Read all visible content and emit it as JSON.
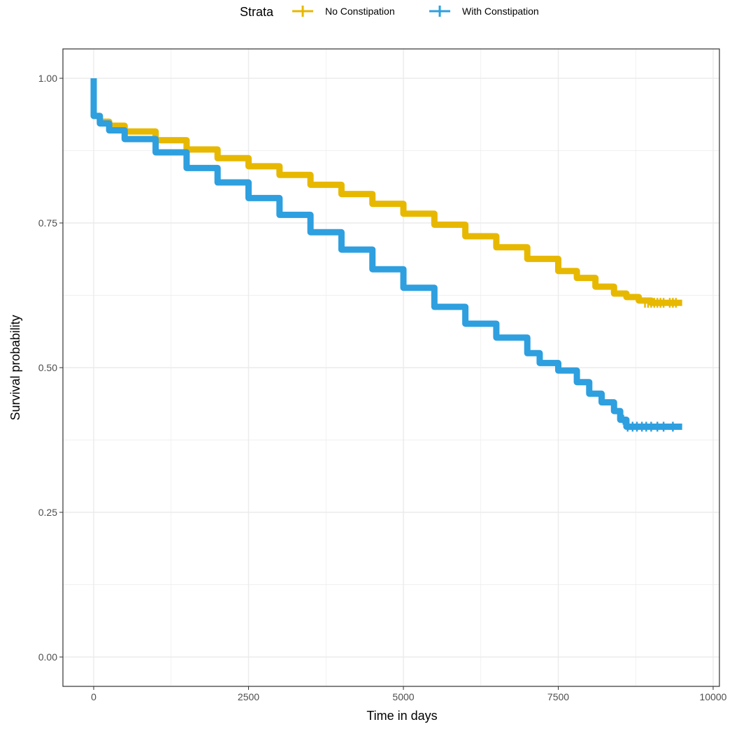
{
  "chart_data": {
    "type": "line",
    "subtype": "kaplan-meier survival curve (step)",
    "title": "",
    "xlabel": "Time in days",
    "ylabel": "Survival probability",
    "xlim": [
      -500,
      10400
    ],
    "ylim": [
      -0.05,
      1.05
    ],
    "x_ticks": [
      0,
      2500,
      5000,
      7500,
      10000
    ],
    "x_tick_labels": [
      "0",
      "2500",
      "5000",
      "7500",
      "10000"
    ],
    "y_ticks": [
      0,
      0.25,
      0.5,
      0.75,
      1.0
    ],
    "y_tick_labels": [
      "0.00",
      "0.25",
      "0.50",
      "0.75",
      "1.00"
    ],
    "grid": true,
    "legend": {
      "title": "Strata",
      "position": "top"
    },
    "series": [
      {
        "name": "No Constipation",
        "color": "#E7B800",
        "x": [
          0,
          0,
          100,
          250,
          500,
          1000,
          1500,
          2000,
          2500,
          3000,
          3500,
          4000,
          4500,
          5000,
          5500,
          6000,
          6500,
          7000,
          7500,
          7800,
          8100,
          8400,
          8600,
          8800,
          9000,
          9500
        ],
        "y": [
          1.0,
          0.935,
          0.925,
          0.918,
          0.908,
          0.893,
          0.877,
          0.862,
          0.848,
          0.833,
          0.816,
          0.8,
          0.783,
          0.766,
          0.747,
          0.727,
          0.708,
          0.688,
          0.667,
          0.655,
          0.64,
          0.628,
          0.622,
          0.616,
          0.612,
          0.612
        ],
        "censor_x": [
          8900,
          8950,
          9000,
          9050,
          9100,
          9150,
          9200,
          9300,
          9350,
          9400
        ],
        "censor_y": [
          0.612,
          0.612,
          0.612,
          0.612,
          0.612,
          0.612,
          0.612,
          0.612,
          0.612,
          0.612
        ]
      },
      {
        "name": "With Constipation",
        "color": "#2E9FDF",
        "x": [
          0,
          0,
          100,
          250,
          500,
          1000,
          1500,
          2000,
          2500,
          3000,
          3500,
          4000,
          4500,
          5000,
          5500,
          6000,
          6500,
          7000,
          7200,
          7500,
          7800,
          8000,
          8200,
          8400,
          8500,
          8600,
          8800,
          9000,
          9500
        ],
        "y": [
          1.0,
          0.935,
          0.922,
          0.91,
          0.895,
          0.872,
          0.845,
          0.82,
          0.793,
          0.764,
          0.734,
          0.704,
          0.67,
          0.638,
          0.605,
          0.576,
          0.552,
          0.525,
          0.508,
          0.495,
          0.475,
          0.455,
          0.44,
          0.425,
          0.41,
          0.398,
          0.398,
          0.398,
          0.398
        ],
        "censor_x": [
          8550,
          8620,
          8700,
          8770,
          8850,
          8920,
          9000,
          9100,
          9200,
          9350
        ],
        "censor_y": [
          0.41,
          0.398,
          0.398,
          0.398,
          0.398,
          0.398,
          0.398,
          0.398,
          0.398,
          0.398
        ]
      }
    ]
  }
}
